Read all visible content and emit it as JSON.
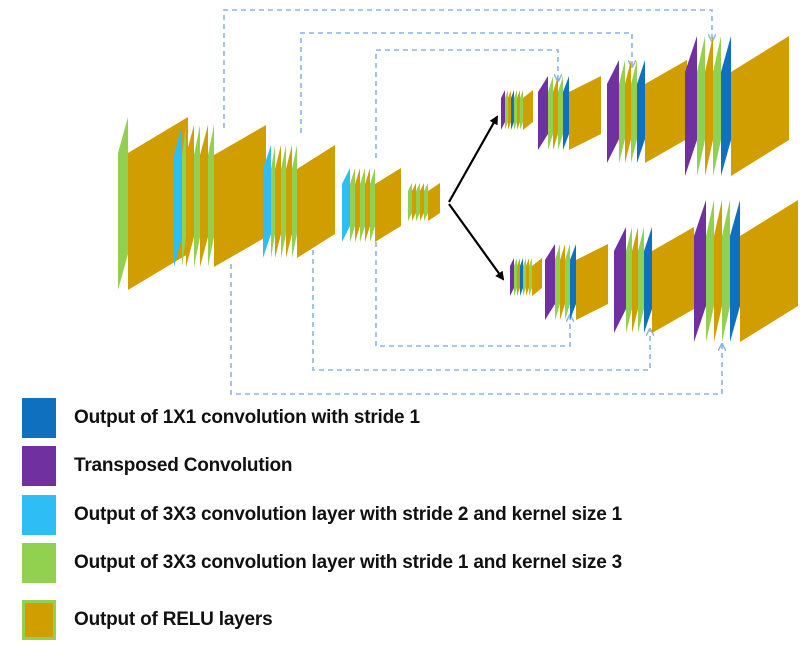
{
  "colors": {
    "conv1x1": "#1070c0",
    "transposed": "#7030a0",
    "conv3x3_s2": "#2ebdf5",
    "conv3x3_s1": "#92d050",
    "relu": "#d19e00",
    "relu_border": "#92d050",
    "skip": "#8eb4e3",
    "arrow": "#000000"
  },
  "legend": [
    {
      "label": "Output of 1X1 convolution with stride 1",
      "color": "#1070c0",
      "icon": "conv1x1-swatch"
    },
    {
      "label": "Transposed Convolution",
      "color": "#7030a0",
      "icon": "transposed-swatch"
    },
    {
      "label": "Output of 3X3 convolution layer with stride 2 and kernel size 1",
      "color": "#2ebdf5",
      "icon": "conv3x3-s2-swatch"
    },
    {
      "label": "Output of 3X3 convolution layer with stride 1 and kernel size 3",
      "color": "#92d050",
      "icon": "conv3x3-s1-swatch"
    },
    {
      "label": "Output of RELU layers",
      "color": "#d19e00",
      "icon": "relu-swatch"
    }
  ]
}
